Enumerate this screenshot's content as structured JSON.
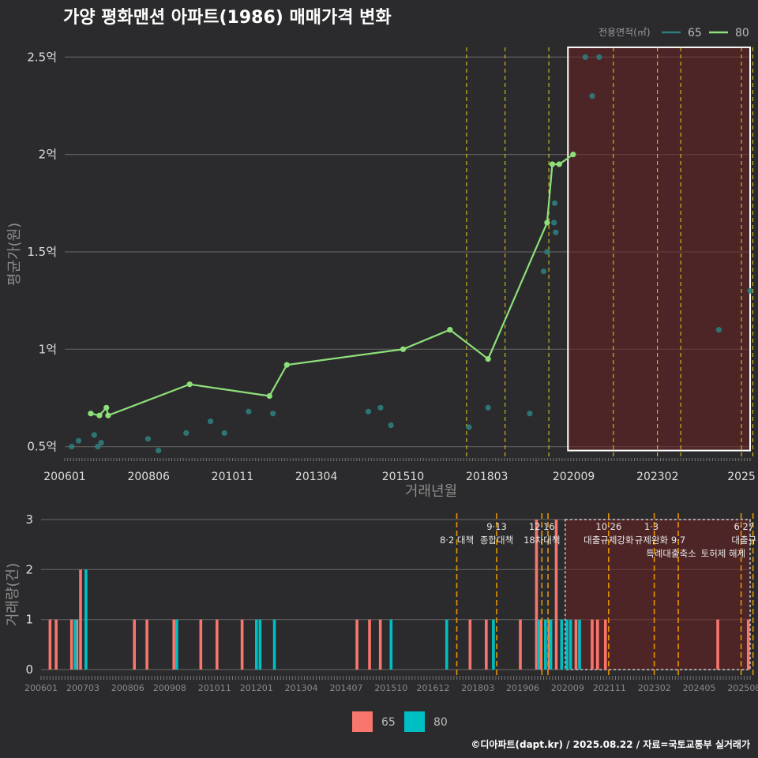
{
  "title": "가양 평화맨션 아파트(1986) 매매가격 변화",
  "footer": "©디아파트(dapt.kr) / 2025.08.22 / 자료=국토교통부 실거래가",
  "colors": {
    "background": "#2b2b2d",
    "series65": "#2e7d7d",
    "series80": "#8ee07a",
    "bar65": "#f8766d",
    "bar80": "#00bfc4",
    "vline": "#e6d21a",
    "vline_bottom": "#e69500",
    "highlight": "#6b2020"
  },
  "legend_top": {
    "title": "전용면적(㎡)",
    "items": [
      "65",
      "80"
    ]
  },
  "legend_bottom": {
    "items": [
      "65",
      "80"
    ]
  },
  "chart_data": [
    {
      "type": "scatter",
      "title": "가양 평화맨션 아파트(1986) 매매가격 변화",
      "xlabel": "거래년월",
      "ylabel": "평균가(원)",
      "xlim": [
        2006.0,
        2025.75
      ],
      "ylim": [
        0.45,
        2.57
      ],
      "x_ticks": [
        {
          "label": "200601",
          "value": 2006.0
        },
        {
          "label": "200806",
          "value": 2008.417
        },
        {
          "label": "201011",
          "value": 2010.833
        },
        {
          "label": "201304",
          "value": 2013.25
        },
        {
          "label": "201510",
          "value": 2015.75
        },
        {
          "label": "201803",
          "value": 2018.167
        },
        {
          "label": "202009",
          "value": 2020.667
        },
        {
          "label": "202302",
          "value": 2023.083
        },
        {
          "label": "2025",
          "value": 2025.5
        }
      ],
      "y_ticks": [
        {
          "label": "0.5억",
          "value": 0.5
        },
        {
          "label": "1억",
          "value": 1.0
        },
        {
          "label": "1.5억",
          "value": 1.5
        },
        {
          "label": "2억",
          "value": 2.0
        },
        {
          "label": "2.5억",
          "value": 2.5
        }
      ],
      "series": [
        {
          "name": "65",
          "mode": "points",
          "points": [
            [
              2006.2,
              0.5
            ],
            [
              2006.4,
              0.53
            ],
            [
              2006.85,
              0.56
            ],
            [
              2006.95,
              0.5
            ],
            [
              2007.05,
              0.52
            ],
            [
              2008.4,
              0.54
            ],
            [
              2008.7,
              0.48
            ],
            [
              2009.5,
              0.57
            ],
            [
              2010.2,
              0.63
            ],
            [
              2010.6,
              0.57
            ],
            [
              2011.3,
              0.68
            ],
            [
              2012.0,
              0.67
            ],
            [
              2014.75,
              0.68
            ],
            [
              2015.1,
              0.7
            ],
            [
              2015.4,
              0.61
            ],
            [
              2017.65,
              0.6
            ],
            [
              2018.2,
              0.7
            ],
            [
              2019.4,
              0.67
            ],
            [
              2019.8,
              1.4
            ],
            [
              2019.9,
              1.5
            ],
            [
              2020.1,
              1.65
            ],
            [
              2020.15,
              1.6
            ],
            [
              2020.12,
              1.75
            ],
            [
              2021.0,
              2.5
            ],
            [
              2021.2,
              2.3
            ],
            [
              2021.4,
              2.5
            ],
            [
              2024.85,
              1.1
            ],
            [
              2025.75,
              1.3
            ]
          ]
        },
        {
          "name": "80",
          "mode": "line",
          "points": [
            [
              2006.75,
              0.67
            ],
            [
              2007.0,
              0.66
            ],
            [
              2007.2,
              0.7
            ],
            [
              2007.25,
              0.66
            ],
            [
              2009.6,
              0.82
            ],
            [
              2011.9,
              0.76
            ],
            [
              2012.4,
              0.92
            ],
            [
              2015.75,
              1.0
            ],
            [
              2017.1,
              1.1
            ],
            [
              2018.2,
              0.95
            ],
            [
              2019.9,
              1.65
            ],
            [
              2020.05,
              1.95
            ],
            [
              2020.25,
              1.95
            ],
            [
              2020.65,
              2.0
            ]
          ]
        }
      ],
      "vlines": [
        2017.58,
        2018.69,
        2019.95,
        2021.81,
        2023.08,
        2023.75,
        2025.5,
        2025.83
      ],
      "highlight": {
        "x": [
          2020.5,
          2025.75
        ],
        "y": [
          0.48,
          2.55
        ]
      }
    },
    {
      "type": "bar",
      "xlabel": "",
      "ylabel": "거래량(건)",
      "xlim": [
        2006.0,
        2025.75
      ],
      "ylim": [
        0,
        3
      ],
      "x_ticks": [
        {
          "label": "200601",
          "value": 2006.0
        },
        {
          "label": "200703",
          "value": 2007.167
        },
        {
          "label": "200806",
          "value": 2008.417
        },
        {
          "label": "200908",
          "value": 2009.583
        },
        {
          "label": "201011",
          "value": 2010.833
        },
        {
          "label": "201201",
          "value": 2012.0
        },
        {
          "label": "201304",
          "value": 2013.25
        },
        {
          "label": "201407",
          "value": 2014.5
        },
        {
          "label": "201510",
          "value": 2015.75
        },
        {
          "label": "201612",
          "value": 2016.917
        },
        {
          "label": "201803",
          "value": 2018.167
        },
        {
          "label": "201906",
          "value": 2019.417
        },
        {
          "label": "202009",
          "value": 2020.667
        },
        {
          "label": "202111",
          "value": 2021.833
        },
        {
          "label": "202302",
          "value": 2023.083
        },
        {
          "label": "202405",
          "value": 2024.333
        },
        {
          "label": "202508",
          "value": 2025.583
        }
      ],
      "y_ticks": [
        {
          "label": "0",
          "value": 0
        },
        {
          "label": "1",
          "value": 1
        },
        {
          "label": "2",
          "value": 2
        },
        {
          "label": "3",
          "value": 3
        }
      ],
      "series": [
        {
          "name": "65",
          "bars": [
            [
              2006.25,
              1
            ],
            [
              2006.42,
              1
            ],
            [
              2006.85,
              1
            ],
            [
              2007.0,
              1
            ],
            [
              2007.1,
              2
            ],
            [
              2008.6,
              1
            ],
            [
              2008.95,
              1
            ],
            [
              2009.7,
              1
            ],
            [
              2010.45,
              1
            ],
            [
              2010.9,
              1
            ],
            [
              2011.6,
              1
            ],
            [
              2014.8,
              1
            ],
            [
              2015.15,
              1
            ],
            [
              2015.45,
              1
            ],
            [
              2017.95,
              1
            ],
            [
              2018.4,
              1
            ],
            [
              2019.35,
              1
            ],
            [
              2019.8,
              3
            ],
            [
              2019.93,
              1
            ],
            [
              2020.15,
              1
            ],
            [
              2020.35,
              3
            ],
            [
              2020.9,
              1
            ],
            [
              2021.35,
              1
            ],
            [
              2021.5,
              1
            ],
            [
              2021.72,
              1
            ],
            [
              2024.85,
              1
            ],
            [
              2025.7,
              1
            ]
          ]
        },
        {
          "name": "80",
          "bars": [
            [
              2006.95,
              1
            ],
            [
              2007.25,
              2
            ],
            [
              2009.78,
              1
            ],
            [
              2012.0,
              1
            ],
            [
              2012.1,
              1
            ],
            [
              2012.5,
              1
            ],
            [
              2015.75,
              1
            ],
            [
              2017.3,
              1
            ],
            [
              2018.6,
              1
            ],
            [
              2019.85,
              1
            ],
            [
              2020.05,
              1
            ],
            [
              2020.2,
              1
            ],
            [
              2020.5,
              1
            ],
            [
              2020.65,
              1
            ],
            [
              2020.75,
              1
            ],
            [
              2021.0,
              1
            ]
          ]
        }
      ],
      "vlines": [
        2017.58,
        2018.69,
        2019.95,
        2020.12,
        2021.81,
        2023.08,
        2023.75,
        2025.5,
        2025.83
      ],
      "highlight": {
        "x": [
          2020.6,
          2025.75
        ],
        "y": [
          0,
          3
        ]
      },
      "annotations": [
        {
          "label": "8·2 대책",
          "x": 2017.58,
          "line": 1
        },
        {
          "label": "9·13",
          "x": 2018.69,
          "line": 0
        },
        {
          "label": "종합대책",
          "x": 2018.69,
          "line": 1
        },
        {
          "label": "12·16",
          "x": 2019.95,
          "line": 0
        },
        {
          "label": "18차대책",
          "x": 2019.95,
          "line": 1
        },
        {
          "label": "10·26",
          "x": 2021.81,
          "line": 0
        },
        {
          "label": "대출규제강화",
          "x": 2021.81,
          "line": 1
        },
        {
          "label": "1·3",
          "x": 2023.0,
          "line": 0
        },
        {
          "label": "규제완화",
          "x": 2023.0,
          "line": 1
        },
        {
          "label": "9·7",
          "x": 2023.75,
          "line": 1
        },
        {
          "label": "특례대출축소",
          "x": 2023.55,
          "line": 2
        },
        {
          "label": "토허제 해제",
          "x": 2025.0,
          "line": 2
        },
        {
          "label": "6·27",
          "x": 2025.58,
          "line": 0
        },
        {
          "label": "대출규",
          "x": 2025.58,
          "line": 1
        }
      ]
    }
  ]
}
